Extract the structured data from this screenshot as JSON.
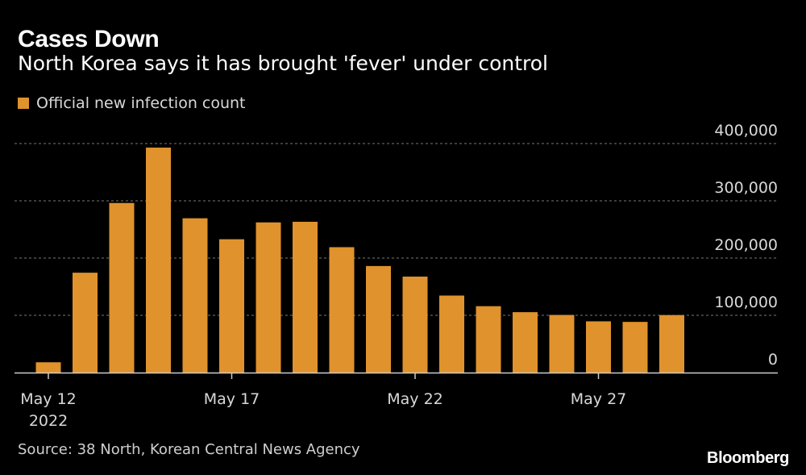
{
  "header": {
    "title": "Cases Down",
    "subtitle": "North Korea says it has brought 'fever' under control"
  },
  "footer": {
    "source": "Source: 38 North, Korean Central News Agency",
    "brand": "Bloomberg"
  },
  "colors": {
    "bar": "#e0922c",
    "grid": "#777777",
    "axis": "#cccccc",
    "text": "#ffffff",
    "muted": "#d8d8d8"
  },
  "chart_data": {
    "type": "bar",
    "title": "Cases Down",
    "subtitle": "North Korea says it has brought 'fever' under control",
    "legend": [
      {
        "name": "Official new infection count",
        "position": "top-left"
      }
    ],
    "xlabel": "",
    "ylabel": "",
    "ylim": [
      0,
      400000
    ],
    "yticks": [
      {
        "value": 0,
        "label": "0"
      },
      {
        "value": 100000,
        "label": "100,000"
      },
      {
        "value": 200000,
        "label": "200,000"
      },
      {
        "value": 300000,
        "label": "300,000"
      },
      {
        "value": 400000,
        "label": "400,000"
      }
    ],
    "categories": [
      "May 12",
      "May 13",
      "May 14",
      "May 15",
      "May 16",
      "May 17",
      "May 18",
      "May 19",
      "May 20",
      "May 21",
      "May 22",
      "May 23",
      "May 24",
      "May 25",
      "May 26",
      "May 27",
      "May 28",
      "May 29"
    ],
    "series": [
      {
        "name": "Official new infection count",
        "values": [
          18000,
          174440,
          296180,
          392920,
          269510,
          232880,
          262270,
          263370,
          219030,
          186090,
          167650,
          134510,
          115970,
          105500,
          100710,
          89500,
          88520,
          100460
        ]
      }
    ],
    "xticks": [
      {
        "category": "May 12",
        "label": "May 12",
        "sublabel": "2022"
      },
      {
        "category": "May 17",
        "label": "May 17",
        "sublabel": ""
      },
      {
        "category": "May 22",
        "label": "May 22",
        "sublabel": ""
      },
      {
        "category": "May 27",
        "label": "May 27",
        "sublabel": ""
      }
    ],
    "grid": true
  }
}
